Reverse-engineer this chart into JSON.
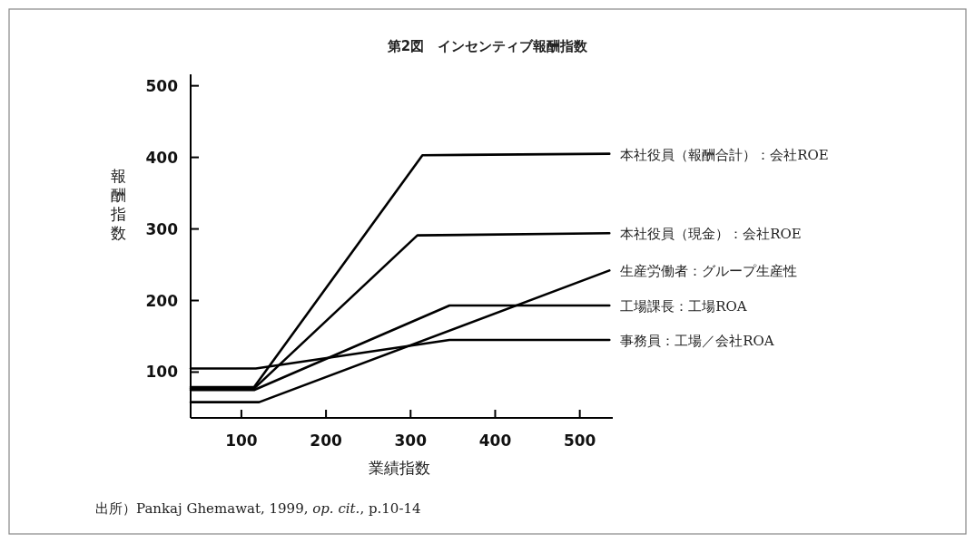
{
  "chart_data": {
    "type": "line",
    "title": "第2図　インセンティブ報酬指数",
    "xlabel": "業績指数",
    "ylabel": "報酬指数",
    "annotations": [
      "出所）Pankaj Ghemawat, 1999, *op. cit.*, p.10-14"
    ],
    "xlim": [
      40,
      539
    ],
    "ylim": [
      36,
      516
    ],
    "xticks": [
      100,
      200,
      300,
      400,
      500
    ],
    "yticks": [
      100,
      200,
      300,
      400,
      500
    ],
    "series": [
      {
        "name": "本社役員（報酬合計）：会社ROE",
        "color": "#000000",
        "x": [
          40,
          115,
          314,
          535
        ],
        "values": [
          79,
          79,
          403,
          405
        ]
      },
      {
        "name": "本社役員（現金）：会社ROE",
        "color": "#000000",
        "x": [
          40,
          115,
          308,
          535
        ],
        "values": [
          77,
          77,
          291,
          294
        ]
      },
      {
        "name": "生産労働者：グループ生産性",
        "color": "#000000",
        "x": [
          40,
          121,
          535
        ],
        "values": [
          58,
          58,
          242
        ]
      },
      {
        "name": "工場課長：工場ROA",
        "color": "#000000",
        "x": [
          40,
          115,
          346,
          535
        ],
        "values": [
          75,
          75,
          193,
          193
        ]
      },
      {
        "name": "事務員：工場／会社ROA",
        "color": "#000000",
        "x": [
          40,
          117,
          346,
          535
        ],
        "values": [
          105,
          105,
          145,
          145
        ]
      }
    ]
  }
}
